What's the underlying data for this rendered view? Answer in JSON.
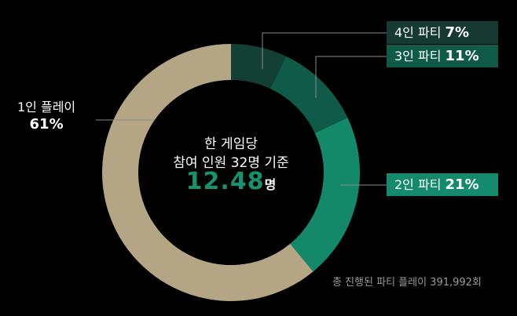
{
  "chart_data": {
    "type": "pie",
    "donut": true,
    "start": "top, clockwise",
    "slices": [
      {
        "label": "4인 파티",
        "value": 7,
        "value_label": "7%",
        "color": "#143f34",
        "label_bg": "#163a31"
      },
      {
        "label": "3인 파티",
        "value": 11,
        "value_label": "11%",
        "color": "#0f5b48",
        "label_bg": "#105a48"
      },
      {
        "label": "2인 파티",
        "value": 21,
        "value_label": "21%",
        "color": "#13896a",
        "label_bg": "#138a6c"
      },
      {
        "label": "1인 플레이",
        "value": 61,
        "value_label": "61%",
        "color": "#b4a585"
      }
    ],
    "center": {
      "line1": "한 게임당",
      "line2": "참여 인원 32명 기준",
      "value": "12.48",
      "unit": "명",
      "value_color": "#13946f"
    },
    "footnote": "총 진행된 파티 플레이 391,992회"
  }
}
